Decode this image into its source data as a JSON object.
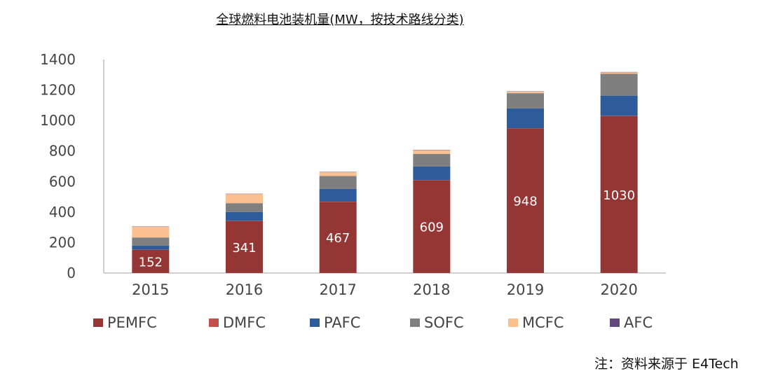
{
  "chart_data": {
    "type": "bar",
    "stacked": true,
    "title": "全球燃料电池装机量(MW，按技术路线分类)",
    "categories": [
      "2015",
      "2016",
      "2017",
      "2018",
      "2019",
      "2020"
    ],
    "ylim": [
      0,
      1400
    ],
    "yticks": [
      0,
      200,
      400,
      600,
      800,
      1000,
      1200,
      1400
    ],
    "grid": false,
    "legend_position": "bottom",
    "series": [
      {
        "name": "PEMFC",
        "color": "#943634",
        "values": [
          152,
          341,
          467,
          609,
          948,
          1030
        ],
        "show_labels": true
      },
      {
        "name": "DMFC",
        "color": "#c0504d",
        "values": [
          1,
          1,
          1,
          1,
          1,
          1
        ],
        "show_labels": false
      },
      {
        "name": "PAFC",
        "color": "#2e5c9a",
        "values": [
          27,
          58,
          83,
          88,
          130,
          132
        ],
        "show_labels": false
      },
      {
        "name": "SOFC",
        "color": "#7f7f7f",
        "values": [
          53,
          58,
          85,
          83,
          100,
          143
        ],
        "show_labels": false
      },
      {
        "name": "MCFC",
        "color": "#fac090",
        "values": [
          70,
          60,
          25,
          25,
          10,
          10
        ],
        "show_labels": false
      },
      {
        "name": "AFC",
        "color": "#604a7b",
        "values": [
          2,
          2,
          2,
          2,
          2,
          2
        ],
        "show_labels": false
      }
    ]
  },
  "footer": {
    "source_note": "注：资料来源于 E4Tech"
  }
}
